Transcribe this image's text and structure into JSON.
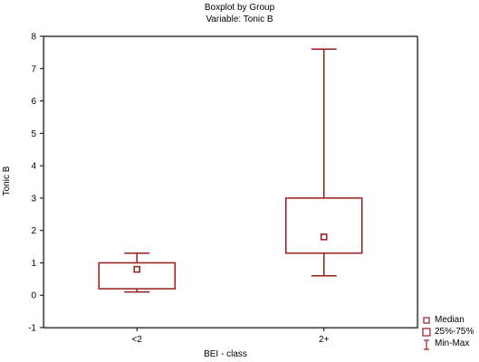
{
  "chart_data": {
    "type": "boxplot",
    "title": "Boxplot by Group",
    "subtitle": "Variable: Tonic B",
    "xlabel": "BEI - class",
    "ylabel": "Tonic B",
    "ylim": [
      -1,
      8
    ],
    "yticks": [
      "-1",
      "0",
      "1",
      "2",
      "3",
      "4",
      "5",
      "6",
      "7",
      "8"
    ],
    "grid": false,
    "legend_position": "bottom-right",
    "color": "#9b1b1b",
    "categories": [
      "<2",
      "2+"
    ],
    "groups": [
      {
        "category": "<2",
        "min": 0.1,
        "q1": 0.2,
        "median": 0.8,
        "q3": 1.0,
        "max": 1.3
      },
      {
        "category": "2+",
        "min": 0.6,
        "q1": 1.3,
        "median": 1.8,
        "q3": 3.0,
        "max": 7.6
      }
    ],
    "legend": [
      "Median",
      "25%-75%",
      "Min-Max"
    ]
  }
}
